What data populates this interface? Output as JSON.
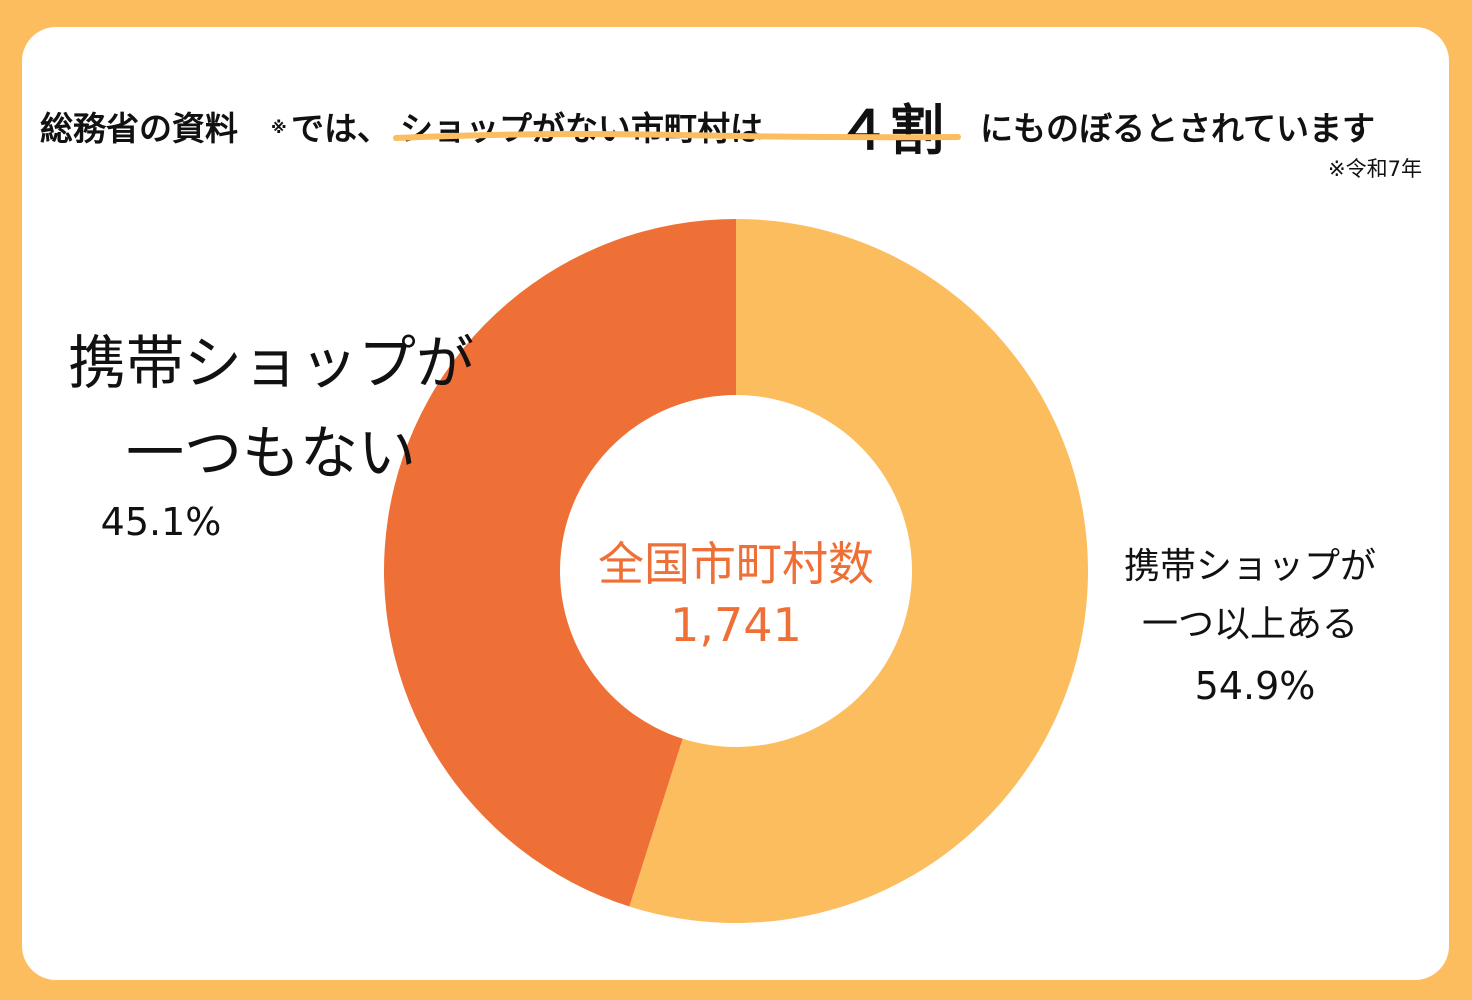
{
  "colors": {
    "frame": "#fcbd5e",
    "card": "#ffffff",
    "accent_dark": "#ee7036",
    "accent_light": "#fcbd5e",
    "text": "#111111"
  },
  "headline": {
    "part_a": "総務省の資料",
    "note_mark": "※",
    "part_b": "では、",
    "emphasis": "ショップがない市町村は",
    "big": "４割",
    "part_c": "にものぼるとされています"
  },
  "source_note": "※令和7年",
  "chart_data": {
    "type": "pie",
    "title": "",
    "center_label": "全国市町村数",
    "center_value": "1,741",
    "slices": [
      {
        "label_lines": [
          "携帯ショップが",
          "一つ以上ある"
        ],
        "value": 54.9,
        "value_text": "54.9%",
        "color": "#fcbd5e"
      },
      {
        "label_lines": [
          "携帯ショップが",
          "一つもない"
        ],
        "value": 45.1,
        "value_text": "45.1%",
        "color": "#ee7036"
      }
    ]
  }
}
